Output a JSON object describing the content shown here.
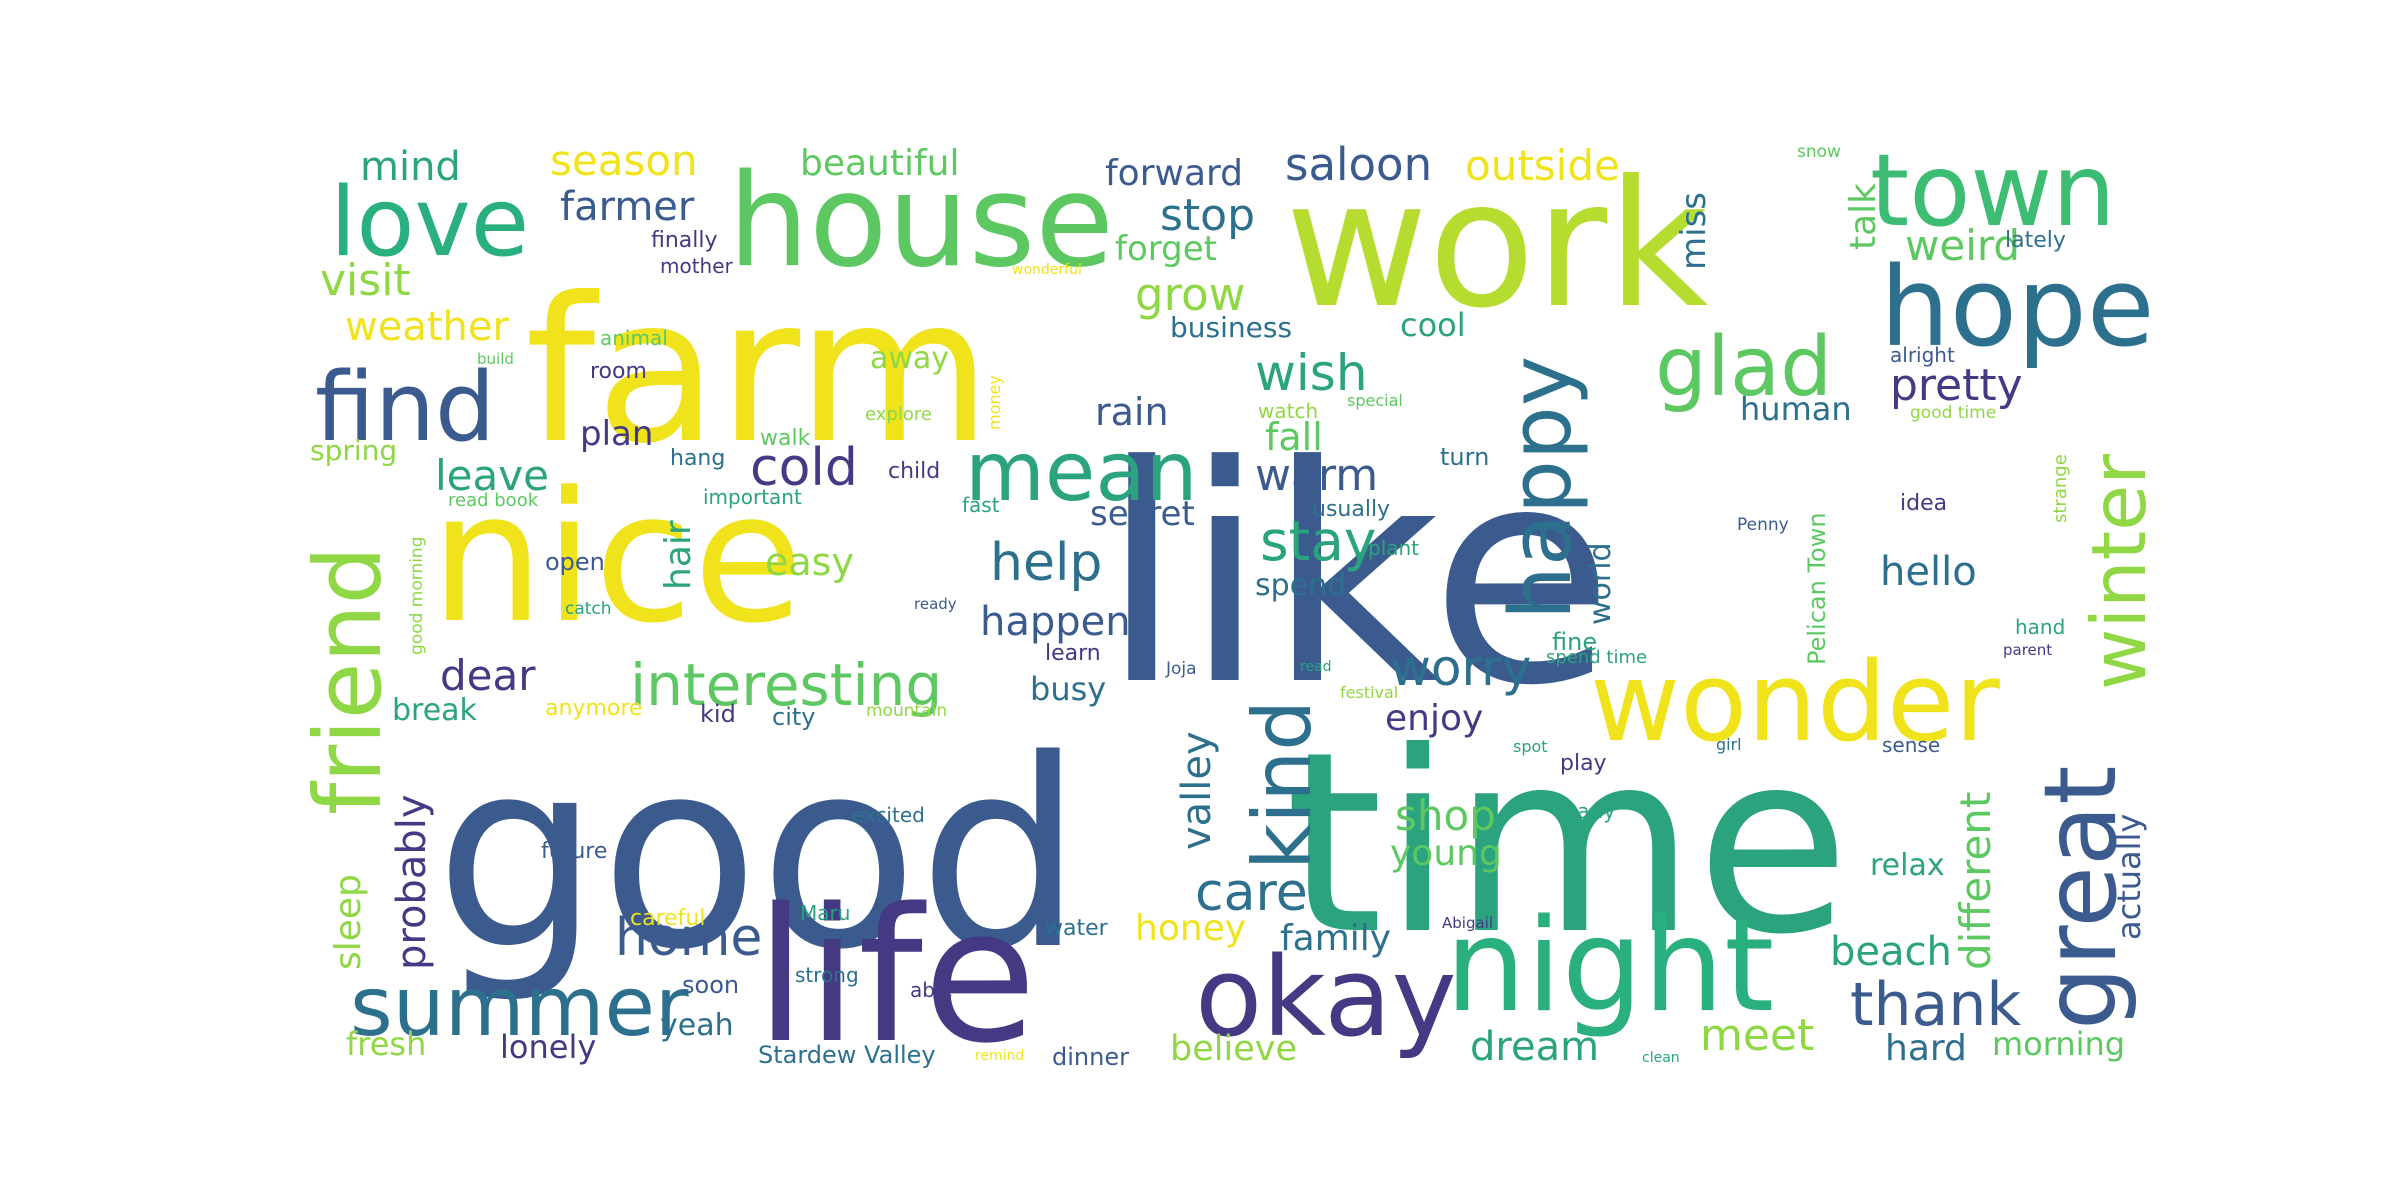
{
  "cloud": {
    "words": [
      {
        "text": "like",
        "color": "#3b5b8f"
      },
      {
        "text": "good",
        "color": "#3b5b8f"
      },
      {
        "text": "time",
        "color": "#2aa37e"
      },
      {
        "text": "farm",
        "color": "#f0e31b"
      },
      {
        "text": "work",
        "color": "#b5dc2e"
      },
      {
        "text": "nice",
        "color": "#f0e31b"
      },
      {
        "text": "life",
        "color": "#443a83"
      },
      {
        "text": "house",
        "color": "#5dc861"
      },
      {
        "text": "night",
        "color": "#2aaf7f"
      },
      {
        "text": "wonder",
        "color": "#f0e31b"
      },
      {
        "text": "okay",
        "color": "#443a83"
      },
      {
        "text": "hope",
        "color": "#2d708e"
      },
      {
        "text": "town",
        "color": "#3dbc74"
      },
      {
        "text": "love",
        "color": "#2aaf7f"
      },
      {
        "text": "great",
        "color": "#3b5b8f"
      },
      {
        "text": "find",
        "color": "#3b5b8f"
      },
      {
        "text": "mean",
        "color": "#2aa37e"
      },
      {
        "text": "summer",
        "color": "#2d708e"
      },
      {
        "text": "friend",
        "color": "#8fd744"
      },
      {
        "text": "happy",
        "color": "#2d708e"
      },
      {
        "text": "glad",
        "color": "#5dc861"
      },
      {
        "text": "winter",
        "color": "#8fd744"
      },
      {
        "text": "kind",
        "color": "#2d708e"
      },
      {
        "text": "interesting",
        "color": "#5dc861"
      },
      {
        "text": "thank",
        "color": "#3b5b8f"
      },
      {
        "text": "home",
        "color": "#3b5b8f"
      },
      {
        "text": "care",
        "color": "#2d708e"
      },
      {
        "text": "stay",
        "color": "#2aa37e"
      },
      {
        "text": "help",
        "color": "#2d708e"
      },
      {
        "text": "wish",
        "color": "#2aa37e"
      },
      {
        "text": "cold",
        "color": "#443a83"
      },
      {
        "text": "worry",
        "color": "#2d708e"
      },
      {
        "text": "saloon",
        "color": "#3b5b8f"
      },
      {
        "text": "visit",
        "color": "#8fd744"
      },
      {
        "text": "grow",
        "color": "#8fd744"
      },
      {
        "text": "stop",
        "color": "#2d708e"
      },
      {
        "text": "pretty",
        "color": "#443a83"
      },
      {
        "text": "happen",
        "color": "#3b5b8f"
      },
      {
        "text": "weather",
        "color": "#f0e31b"
      },
      {
        "text": "outside",
        "color": "#f0e31b"
      },
      {
        "text": "season",
        "color": "#f0e31b"
      },
      {
        "text": "farmer",
        "color": "#3b5b8f"
      },
      {
        "text": "leave",
        "color": "#2aa37e"
      },
      {
        "text": "warm",
        "color": "#3b5b8f"
      },
      {
        "text": "dear",
        "color": "#443a83"
      },
      {
        "text": "weird",
        "color": "#5dc861"
      },
      {
        "text": "hello",
        "color": "#2d708e"
      },
      {
        "text": "mind",
        "color": "#2aa37e"
      },
      {
        "text": "shop",
        "color": "#5dc861"
      },
      {
        "text": "meet",
        "color": "#8fd744"
      },
      {
        "text": "beach",
        "color": "#2aa37e"
      },
      {
        "text": "dream",
        "color": "#2aa37e"
      },
      {
        "text": "different",
        "color": "#5dc861"
      },
      {
        "text": "probably",
        "color": "#443a83"
      },
      {
        "text": "valley",
        "color": "#2d708e"
      },
      {
        "text": "rain",
        "color": "#3b5b8f"
      },
      {
        "text": "beautiful",
        "color": "#5dc861"
      },
      {
        "text": "forward",
        "color": "#3b5b8f"
      },
      {
        "text": "talk",
        "color": "#5dc861"
      },
      {
        "text": "enjoy",
        "color": "#443a83"
      },
      {
        "text": "family",
        "color": "#2d708e"
      },
      {
        "text": "young",
        "color": "#5dc861"
      },
      {
        "text": "hard",
        "color": "#2d708e"
      },
      {
        "text": "honey",
        "color": "#f0e31b"
      },
      {
        "text": "believe",
        "color": "#8fd744"
      },
      {
        "text": "fall",
        "color": "#5dc861"
      },
      {
        "text": "easy",
        "color": "#8fd744"
      },
      {
        "text": "hair",
        "color": "#2aa37e"
      },
      {
        "text": "secret",
        "color": "#3b5b8f"
      },
      {
        "text": "miss",
        "color": "#2d708e"
      },
      {
        "text": "forget",
        "color": "#5dc861"
      },
      {
        "text": "sleep",
        "color": "#8fd744"
      },
      {
        "text": "actually",
        "color": "#3b5b8f"
      },
      {
        "text": "human",
        "color": "#2d708e"
      },
      {
        "text": "busy",
        "color": "#2d708e"
      },
      {
        "text": "business",
        "color": "#2d708e"
      },
      {
        "text": "cool",
        "color": "#2aa37e"
      },
      {
        "text": "spend",
        "color": "#2d708e"
      },
      {
        "text": "morning",
        "color": "#5dc861"
      },
      {
        "text": "relax",
        "color": "#2aa37e"
      },
      {
        "text": "lonely",
        "color": "#443a83"
      },
      {
        "text": "yeah",
        "color": "#2d708e"
      },
      {
        "text": "fresh",
        "color": "#8fd744"
      },
      {
        "text": "plan",
        "color": "#443a83"
      },
      {
        "text": "break",
        "color": "#2aa37e"
      },
      {
        "text": "world",
        "color": "#2d708e"
      },
      {
        "text": "away",
        "color": "#8fd744"
      },
      {
        "text": "spring",
        "color": "#8fd744"
      },
      {
        "text": "Pelican Town",
        "color": "#5dc861"
      },
      {
        "text": "city",
        "color": "#2d708e"
      },
      {
        "text": "dinner",
        "color": "#3b5b8f"
      },
      {
        "text": "Stardew Valley",
        "color": "#2d708e"
      },
      {
        "text": "turn",
        "color": "#2d708e"
      },
      {
        "text": "fine",
        "color": "#2aa37e"
      },
      {
        "text": "kid",
        "color": "#443a83"
      },
      {
        "text": "child",
        "color": "#443a83"
      },
      {
        "text": "usually",
        "color": "#2d708e"
      },
      {
        "text": "finally",
        "color": "#443a83"
      },
      {
        "text": "mother",
        "color": "#443a83"
      },
      {
        "text": "learn",
        "color": "#443a83"
      },
      {
        "text": "soon",
        "color": "#3b5b8f"
      },
      {
        "text": "careful",
        "color": "#f0e31b"
      },
      {
        "text": "open",
        "color": "#3b5b8f"
      },
      {
        "text": "future",
        "color": "#3b5b8f"
      },
      {
        "text": "water",
        "color": "#2d708e"
      },
      {
        "text": "hang",
        "color": "#2d708e"
      },
      {
        "text": "walk",
        "color": "#5dc861"
      },
      {
        "text": "room",
        "color": "#443a83"
      },
      {
        "text": "play",
        "color": "#443a83"
      },
      {
        "text": "anymore",
        "color": "#f0e31b"
      },
      {
        "text": "watch",
        "color": "#8fd744"
      },
      {
        "text": "plant",
        "color": "#2aa37e"
      },
      {
        "text": "strong",
        "color": "#2d708e"
      },
      {
        "text": "Maru",
        "color": "#2aa37e"
      },
      {
        "text": "idea",
        "color": "#443a83"
      },
      {
        "text": "important",
        "color": "#2aa37e"
      },
      {
        "text": "animal",
        "color": "#5dc861"
      },
      {
        "text": "fast",
        "color": "#2aa37e"
      },
      {
        "text": "early",
        "color": "#2aa37e"
      },
      {
        "text": "sense",
        "color": "#3b5b8f"
      },
      {
        "text": "lately",
        "color": "#2d708e"
      },
      {
        "text": "alright",
        "color": "#3b5b8f"
      },
      {
        "text": "hand",
        "color": "#2aa37e"
      },
      {
        "text": "spend time",
        "color": "#2aa37e"
      },
      {
        "text": "explore",
        "color": "#8fd744"
      },
      {
        "text": "excited",
        "color": "#2d708e"
      },
      {
        "text": "able",
        "color": "#443a83"
      },
      {
        "text": "read book",
        "color": "#5dc861"
      },
      {
        "text": "good morning",
        "color": "#8fd744"
      },
      {
        "text": "strange",
        "color": "#8fd744"
      },
      {
        "text": "good time",
        "color": "#8fd744"
      },
      {
        "text": "catch",
        "color": "#2aa37e"
      },
      {
        "text": "mountain",
        "color": "#8fd744"
      },
      {
        "text": "Joja",
        "color": "#3b5b8f"
      },
      {
        "text": "festival",
        "color": "#8fd744"
      },
      {
        "text": "snow",
        "color": "#5dc861"
      },
      {
        "text": "build",
        "color": "#5dc861"
      },
      {
        "text": "Penny",
        "color": "#3b5b8f"
      },
      {
        "text": "Abigail",
        "color": "#443a83"
      },
      {
        "text": "girl",
        "color": "#2d708e"
      },
      {
        "text": "parent",
        "color": "#443a83"
      },
      {
        "text": "ready",
        "color": "#3b5b8f"
      },
      {
        "text": "read",
        "color": "#2aa37e"
      },
      {
        "text": "special",
        "color": "#5dc861"
      },
      {
        "text": "spot",
        "color": "#2aa37e"
      },
      {
        "text": "money",
        "color": "#f0e31b"
      },
      {
        "text": "wonderful",
        "color": "#f0e31b"
      },
      {
        "text": "remind",
        "color": "#f0e31b"
      },
      {
        "text": "clean",
        "color": "#2aa37e"
      }
    ]
  }
}
